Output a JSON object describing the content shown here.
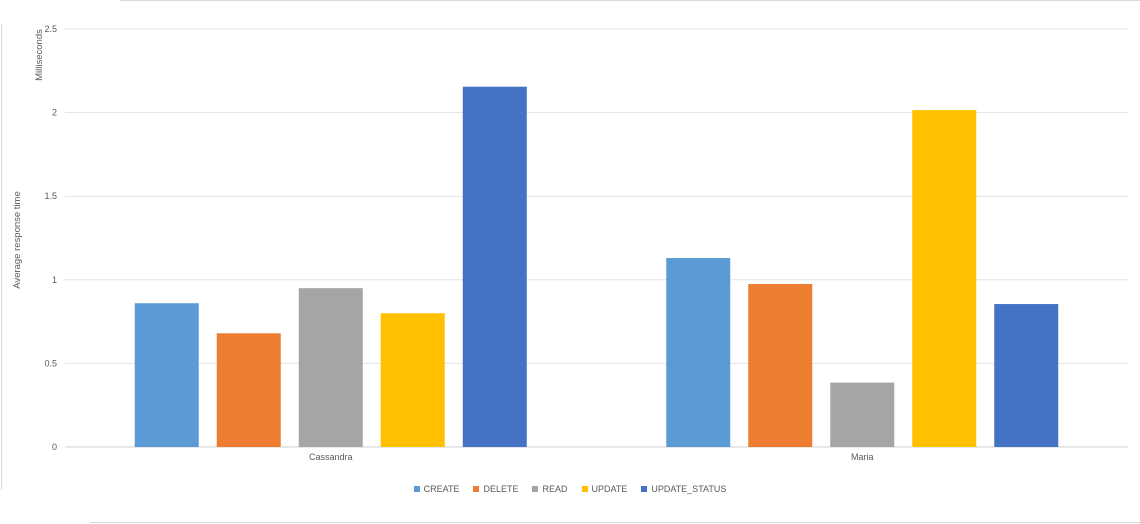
{
  "chart_data": {
    "type": "bar",
    "categories": [
      "Cassandra",
      "Maria"
    ],
    "series": [
      {
        "name": "CREATE",
        "color": "#5b9bd5",
        "values": [
          0.86,
          1.13
        ]
      },
      {
        "name": "DELETE",
        "color": "#ed7d31",
        "values": [
          0.68,
          0.975
        ]
      },
      {
        "name": "READ",
        "color": "#a5a5a5",
        "values": [
          0.95,
          0.385
        ]
      },
      {
        "name": "UPDATE",
        "color": "#ffc000",
        "values": [
          0.8,
          2.015
        ]
      },
      {
        "name": "UPDATE_STATUS",
        "color": "#4472c4",
        "values": [
          2.155,
          0.855
        ]
      }
    ],
    "ylim": [
      0,
      2.5
    ],
    "yticks": [
      "0",
      "0.5",
      "1",
      "1.5",
      "2",
      "2.5"
    ],
    "ylabel": "Average response time",
    "ylabel_secondary": "Milliseconds",
    "xlabel": "",
    "grid": true,
    "legend_position": "bottom"
  }
}
